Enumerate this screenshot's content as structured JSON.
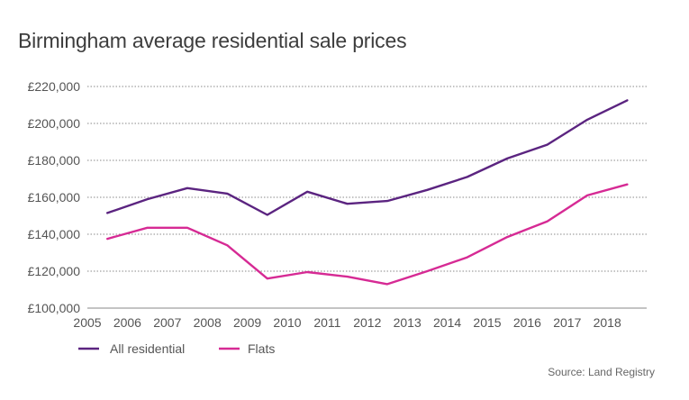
{
  "chart_data": {
    "type": "line",
    "title": "Birmingham average residential sale prices",
    "xlabel": "",
    "ylabel": "",
    "x": [
      2005.5,
      2006.5,
      2007.5,
      2008.5,
      2009.5,
      2010.5,
      2011.5,
      2012.5,
      2013.5,
      2014.5,
      2015.5,
      2016.5,
      2017.5,
      2018.5
    ],
    "xlim": [
      2005,
      2019
    ],
    "xticks": [
      2005,
      2006,
      2007,
      2008,
      2009,
      2010,
      2011,
      2012,
      2013,
      2014,
      2015,
      2016,
      2017,
      2018
    ],
    "xtick_labels": [
      "2005",
      "2006",
      "2007",
      "2008",
      "2009",
      "2010",
      "2011",
      "2012",
      "2013",
      "2014",
      "2015",
      "2016",
      "2017",
      "2018"
    ],
    "ylim": [
      100000,
      220000
    ],
    "yticks": [
      100000,
      120000,
      140000,
      160000,
      180000,
      200000,
      220000
    ],
    "ytick_labels": [
      "£100,000",
      "£120,000",
      "£140,000",
      "£160,000",
      "£180,000",
      "£200,000",
      "£220,000"
    ],
    "grid": true,
    "legend_position": "bottom-left",
    "series": [
      {
        "name": "All residential",
        "color": "#5b2480",
        "values": [
          151500,
          159000,
          165000,
          162000,
          150500,
          163000,
          156500,
          158000,
          164000,
          171000,
          181000,
          188500,
          202000,
          212500
        ]
      },
      {
        "name": "Flats",
        "color": "#d62a94",
        "values": [
          137500,
          143500,
          143500,
          134000,
          116000,
          119500,
          117000,
          113000,
          120000,
          127500,
          138500,
          147000,
          161000,
          167000
        ]
      }
    ],
    "source": "Source: Land Registry"
  }
}
